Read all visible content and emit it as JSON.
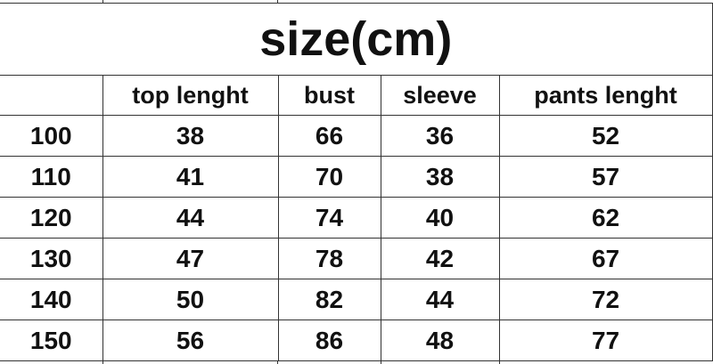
{
  "title": "size(cm)",
  "columns": [
    "",
    "top lenght",
    "bust",
    "sleeve",
    "pants lenght"
  ],
  "rows": [
    [
      "100",
      "38",
      "66",
      "36",
      "52"
    ],
    [
      "110",
      "41",
      "70",
      "38",
      "57"
    ],
    [
      "120",
      "44",
      "74",
      "40",
      "62"
    ],
    [
      "130",
      "47",
      "78",
      "42",
      "67"
    ],
    [
      "140",
      "50",
      "82",
      "44",
      "72"
    ],
    [
      "150",
      "56",
      "86",
      "48",
      "77"
    ]
  ]
}
